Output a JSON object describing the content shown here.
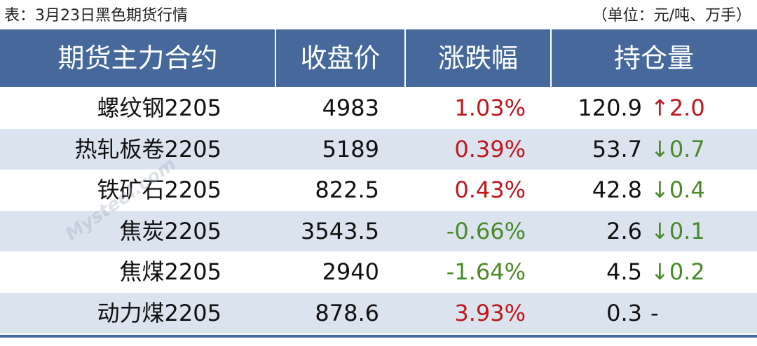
{
  "caption": {
    "title": "表：3月23日黑色期货行情",
    "unit": "（单位：元/吨、万手）"
  },
  "watermark": "Mysteel.com",
  "table": {
    "header": [
      "期货主力合约",
      "收盘价",
      "涨跌幅",
      "持仓量"
    ],
    "rows": [
      {
        "name": "螺纹钢2205",
        "price": "4983",
        "change": "1.03%",
        "change_color": "#c0161c",
        "oi": "120.9",
        "oi_change": "↑2.0",
        "oi_color": "#c0161c"
      },
      {
        "name": "热轧板卷2205",
        "price": "5189",
        "change": "0.39%",
        "change_color": "#c0161c",
        "oi": "53.7",
        "oi_change": "↓0.7",
        "oi_color": "#4a8a2a"
      },
      {
        "name": "铁矿石2205",
        "price": "822.5",
        "change": "0.43%",
        "change_color": "#c0161c",
        "oi": "42.8",
        "oi_change": "↓0.4",
        "oi_color": "#4a8a2a"
      },
      {
        "name": "焦炭2205",
        "price": "3543.5",
        "change": "-0.66%",
        "change_color": "#4a8a2a",
        "oi": "2.6",
        "oi_change": "↓0.1",
        "oi_color": "#4a8a2a"
      },
      {
        "name": "焦煤2205",
        "price": "2940",
        "change": "-1.64%",
        "change_color": "#4a8a2a",
        "oi": "4.5",
        "oi_change": "↓0.2",
        "oi_color": "#4a8a2a"
      },
      {
        "name": "动力煤2205",
        "price": "878.6",
        "change": "3.93%",
        "change_color": "#c0161c",
        "oi": "0.3",
        "oi_change": "-",
        "oi_color": "#111111"
      }
    ]
  }
}
